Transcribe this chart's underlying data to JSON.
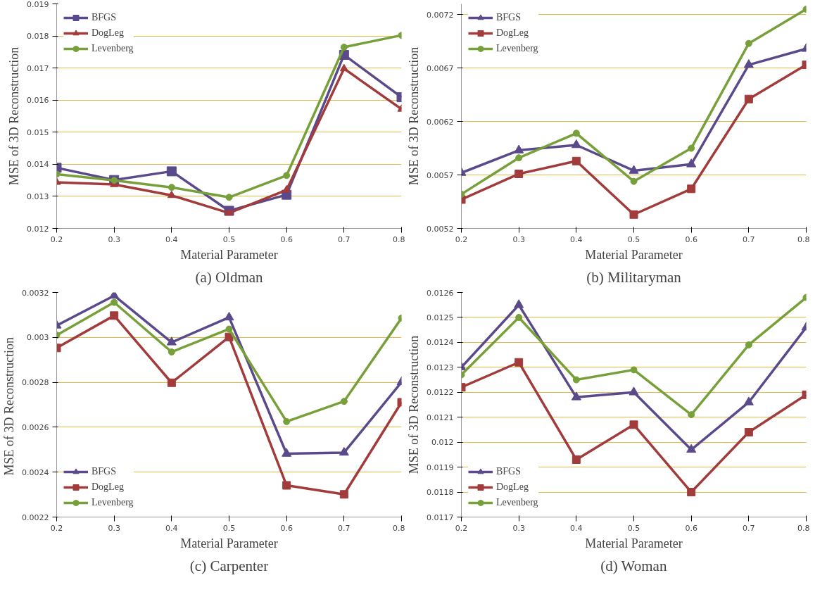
{
  "chart_data": [
    {
      "type": "line",
      "title": "(a) Oldman",
      "xlabel": "Material Parameter",
      "ylabel": "MSE of 3D Reconstruction",
      "x": [
        0.2,
        0.3,
        0.4,
        0.5,
        0.6,
        0.7,
        0.8
      ],
      "xlim": [
        0.2,
        0.8
      ],
      "xticks": [
        0.2,
        0.3,
        0.4,
        0.5,
        0.6,
        0.7,
        0.8
      ],
      "ylim": [
        0.012,
        0.019
      ],
      "yticks": [
        0.012,
        0.013,
        0.014,
        0.015,
        0.016,
        0.017,
        0.018,
        0.019
      ],
      "grid": "y",
      "legend": "top left",
      "series": [
        {
          "name": "BFGS",
          "color": "#5b4a8b",
          "marker": "square",
          "values": [
            0.01389,
            0.01351,
            0.01378,
            0.01255,
            0.01305,
            0.01741,
            0.01609
          ]
        },
        {
          "name": "DogLeg",
          "color": "#a23b3b",
          "marker": "triangle",
          "values": [
            0.01344,
            0.01337,
            0.01303,
            0.01248,
            0.0132,
            0.01698,
            0.01572
          ]
        },
        {
          "name": "Levenberg",
          "color": "#77a03a",
          "marker": "circle",
          "values": [
            0.01369,
            0.0135,
            0.01328,
            0.01297,
            0.01365,
            0.01765,
            0.01802
          ]
        }
      ]
    },
    {
      "type": "line",
      "title": "(b) Militaryman",
      "xlabel": "Material Parameter",
      "ylabel": "MSE of 3D Reconstruction",
      "x": [
        0.2,
        0.3,
        0.4,
        0.5,
        0.6,
        0.7,
        0.8
      ],
      "xlim": [
        0.2,
        0.8
      ],
      "xticks": [
        0.2,
        0.3,
        0.4,
        0.5,
        0.6,
        0.7,
        0.8
      ],
      "ylim": [
        0.0052,
        0.0073
      ],
      "yticks": [
        0.0052,
        0.0057,
        0.0062,
        0.0067,
        0.0072
      ],
      "grid": "y",
      "legend": "top left",
      "series": [
        {
          "name": "BFGS",
          "color": "#5b4a8b",
          "marker": "triangle",
          "values": [
            0.00572,
            0.00593,
            0.00598,
            0.00574,
            0.0058,
            0.00673,
            0.00688
          ]
        },
        {
          "name": "DogLeg",
          "color": "#a23b3b",
          "marker": "square",
          "values": [
            0.00547,
            0.00571,
            0.00583,
            0.00533,
            0.00557,
            0.00641,
            0.00673
          ]
        },
        {
          "name": "Levenberg",
          "color": "#77a03a",
          "marker": "circle",
          "values": [
            0.00552,
            0.00586,
            0.00609,
            0.00564,
            0.00595,
            0.00693,
            0.00725
          ]
        }
      ]
    },
    {
      "type": "line",
      "title": "(c) Carpenter",
      "xlabel": "Material Parameter",
      "ylabel": "MSE of 3D  Reconstruction",
      "x": [
        0.2,
        0.3,
        0.4,
        0.5,
        0.6,
        0.7,
        0.8
      ],
      "xlim": [
        0.2,
        0.8
      ],
      "xticks": [
        0.2,
        0.3,
        0.4,
        0.5,
        0.6,
        0.7,
        0.8
      ],
      "ylim": [
        0.0022,
        0.0032
      ],
      "yticks": [
        0.0022,
        0.0024,
        0.0026,
        0.0028,
        0.003,
        0.0032
      ],
      "grid": "y",
      "legend": "bottom left",
      "series": [
        {
          "name": "BFGS",
          "color": "#5b4a8b",
          "marker": "triangle",
          "values": [
            0.003053,
            0.003186,
            0.002978,
            0.003089,
            0.002482,
            0.002487,
            0.002801
          ]
        },
        {
          "name": "DogLeg",
          "color": "#a23b3b",
          "marker": "square",
          "values": [
            0.002953,
            0.003097,
            0.002798,
            0.003002,
            0.002341,
            0.002301,
            0.002711
          ]
        },
        {
          "name": "Levenberg",
          "color": "#77a03a",
          "marker": "circle",
          "values": [
            0.00301,
            0.003156,
            0.002935,
            0.003037,
            0.002625,
            0.002715,
            0.003086
          ]
        }
      ]
    },
    {
      "type": "line",
      "title": "(d) Woman",
      "xlabel": "Material Parameter",
      "ylabel": "MSE of 3D Reconstruction",
      "x": [
        0.2,
        0.3,
        0.4,
        0.5,
        0.6,
        0.7,
        0.8
      ],
      "xlim": [
        0.2,
        0.8
      ],
      "xticks": [
        0.2,
        0.3,
        0.4,
        0.5,
        0.6,
        0.7,
        0.8
      ],
      "ylim": [
        0.0117,
        0.0126
      ],
      "yticks": [
        0.0117,
        0.0118,
        0.0119,
        0.012,
        0.0121,
        0.0122,
        0.0123,
        0.0124,
        0.0125,
        0.0126
      ],
      "grid": "y",
      "legend": "bottom left",
      "series": [
        {
          "name": "BFGS",
          "color": "#5b4a8b",
          "marker": "triangle",
          "values": [
            0.0123,
            0.01255,
            0.01218,
            0.0122,
            0.01197,
            0.01216,
            0.01246
          ]
        },
        {
          "name": "DogLeg",
          "color": "#a23b3b",
          "marker": "square",
          "values": [
            0.01222,
            0.01232,
            0.01193,
            0.01207,
            0.0118,
            0.01204,
            0.01219
          ]
        },
        {
          "name": "Levenberg",
          "color": "#77a03a",
          "marker": "circle",
          "values": [
            0.01227,
            0.0125,
            0.01225,
            0.01229,
            0.01211,
            0.01239,
            0.01258
          ]
        }
      ]
    }
  ]
}
